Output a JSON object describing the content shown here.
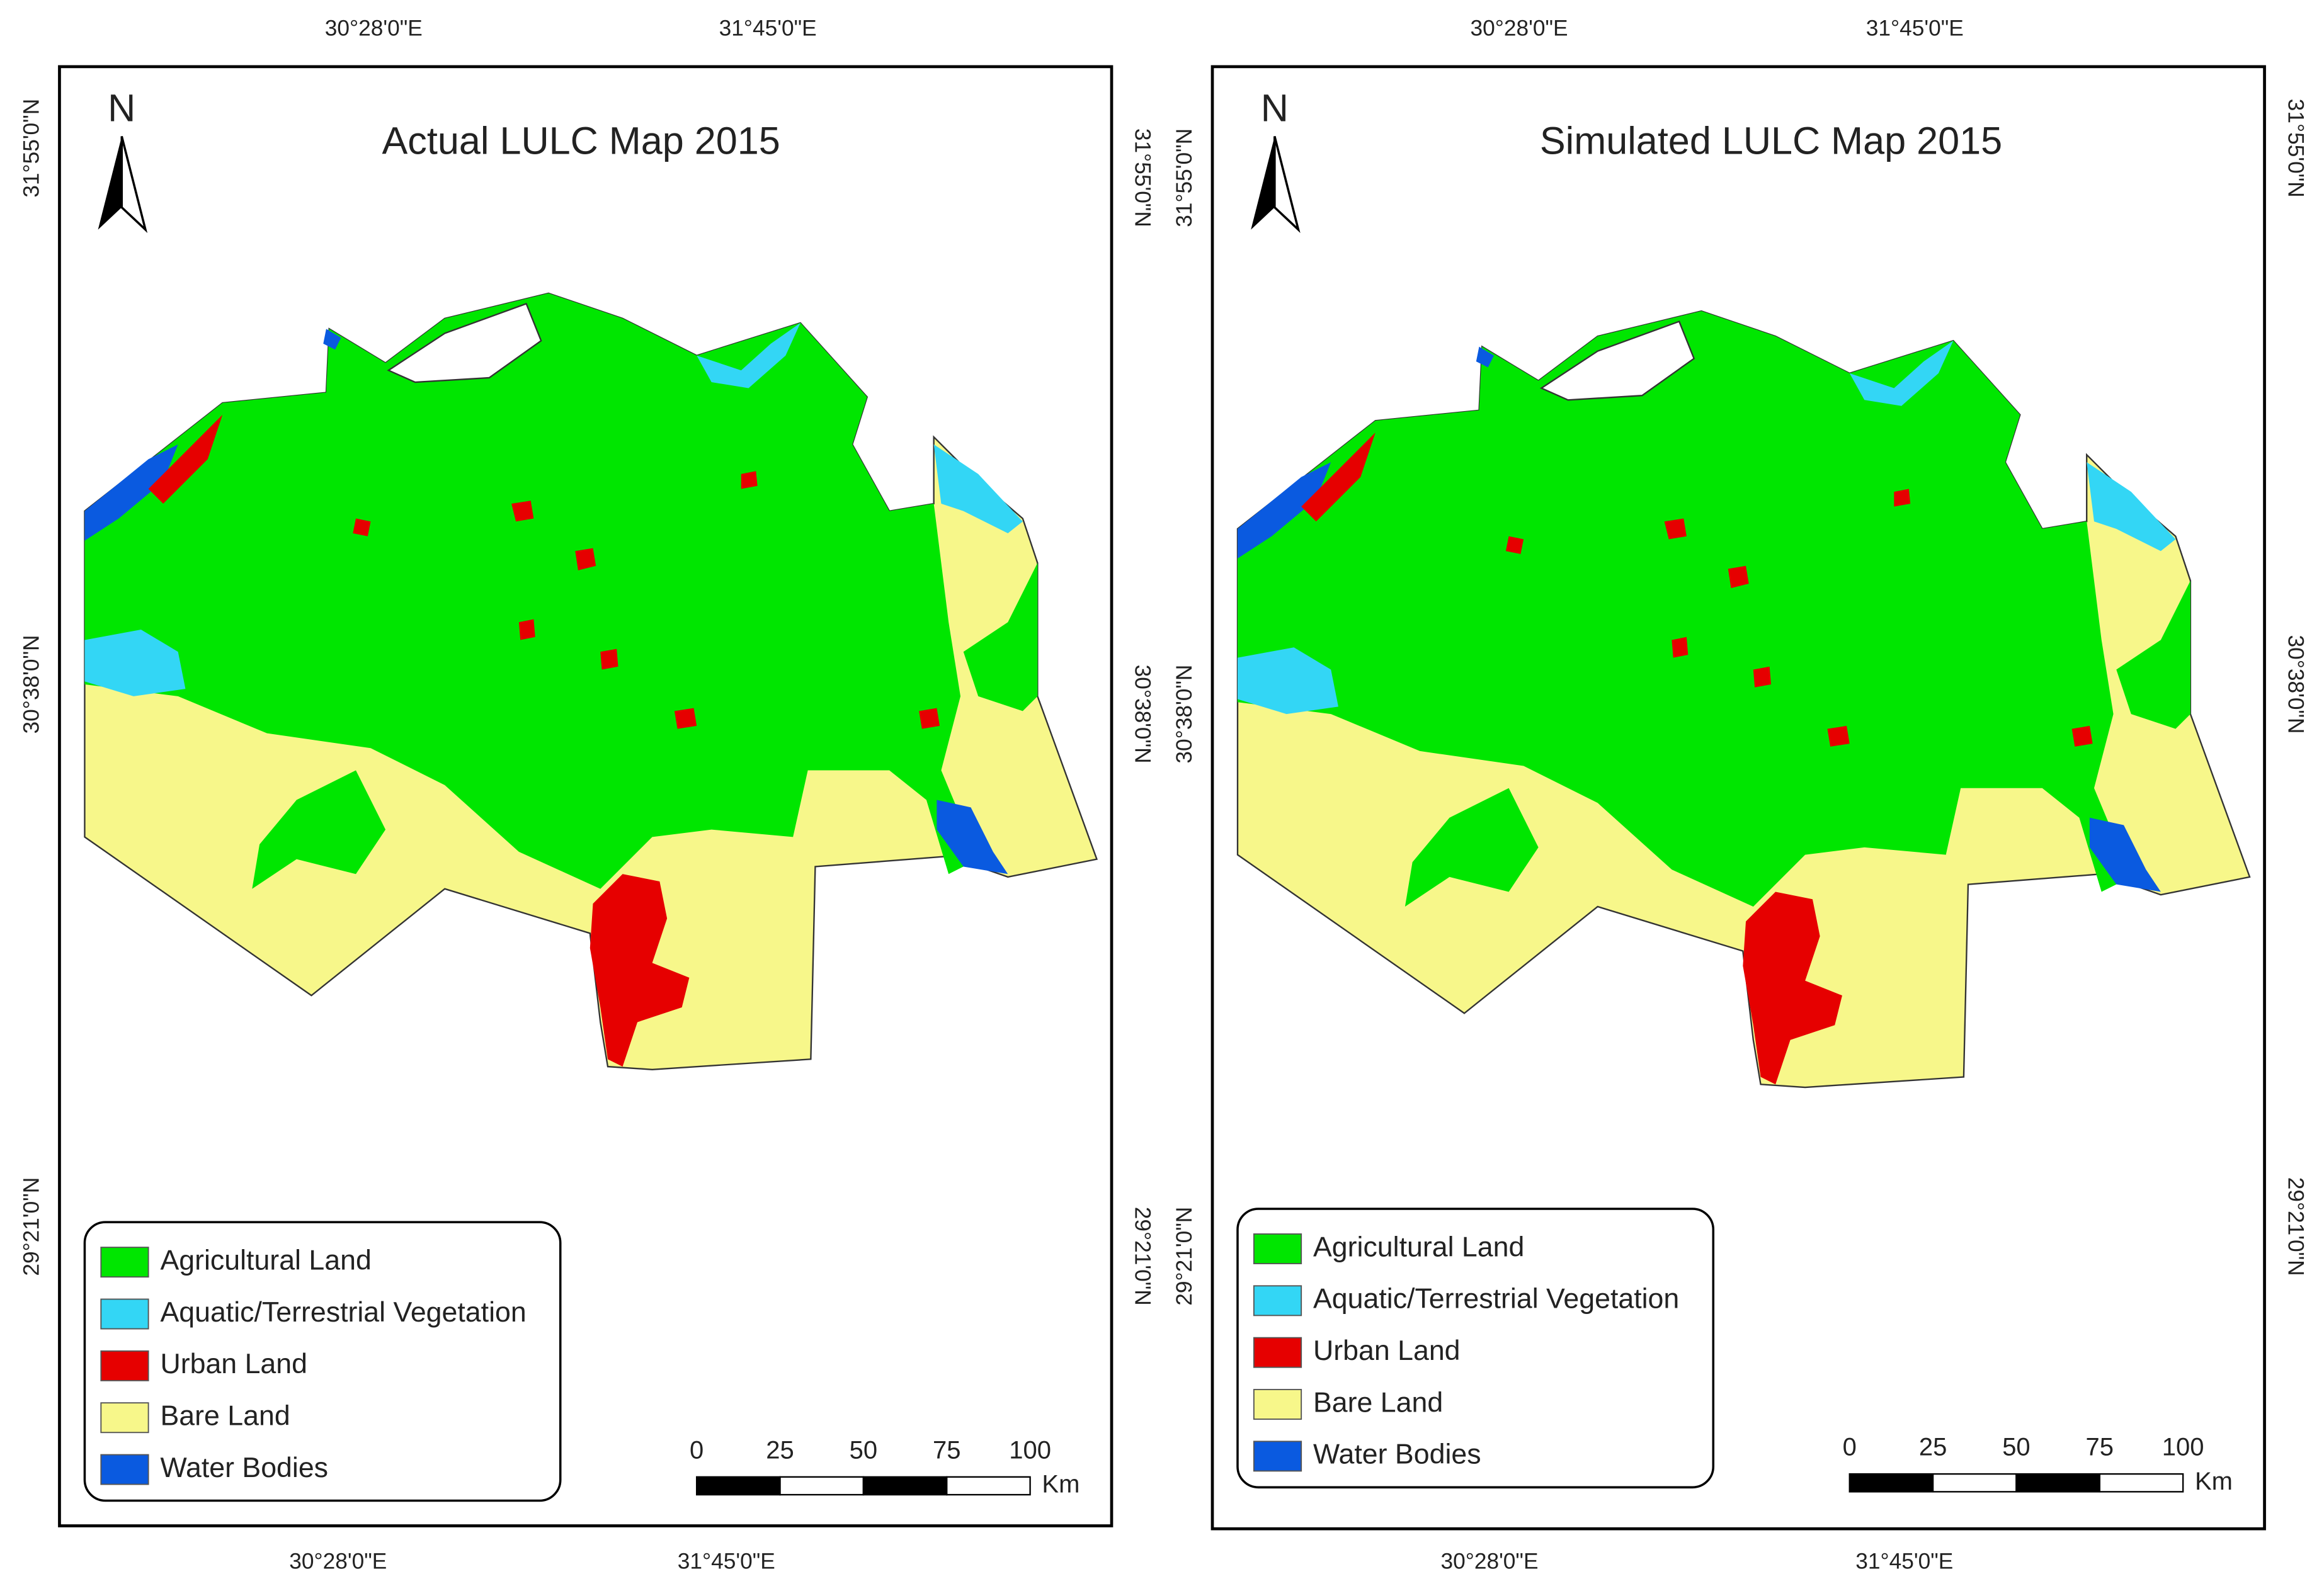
{
  "panels": [
    {
      "title": "Actual LULC Map 2015",
      "north": "N",
      "top_labels": [
        "30°28'0\"E",
        "31°45'0\"E"
      ],
      "bottom_labels": [
        "30°28'0\"E",
        "31°45'0\"E"
      ],
      "left_labels": [
        "31°55'0\"N",
        "30°38'0\"N",
        "29°21'0\"N"
      ],
      "right_labels": [
        "31°55'0\"N",
        "30°38'0\"N",
        "29°21'0\"N"
      ],
      "legend": [
        {
          "label": "Agricultural Land",
          "color": "#00e600"
        },
        {
          "label": "Aquatic/Terrestrial Vegetation",
          "color": "#33d6f5"
        },
        {
          "label": "Urban Land",
          "color": "#e60000"
        },
        {
          "label": "Bare Land",
          "color": "#f7f78a"
        },
        {
          "label": "Water Bodies",
          "color": "#0a5ae0"
        }
      ],
      "scale": {
        "ticks": [
          0,
          25,
          50,
          75,
          100
        ],
        "unit": "Km"
      }
    },
    {
      "title": "Simulated LULC Map 2015",
      "north": "N",
      "top_labels": [
        "30°28'0\"E",
        "31°45'0\"E"
      ],
      "bottom_labels": [
        "30°28'0\"E",
        "31°45'0\"E"
      ],
      "left_labels": [
        "31°55'0\"N",
        "30°38'0\"N",
        "29°21'0\"N"
      ],
      "right_labels": [
        "31°55'0\"N",
        "30°38'0\"N",
        "29°21'0\"N"
      ],
      "legend": [
        {
          "label": "Agricultural Land",
          "color": "#00e600"
        },
        {
          "label": "Aquatic/Terrestrial Vegetation",
          "color": "#33d6f5"
        },
        {
          "label": "Urban Land",
          "color": "#e60000"
        },
        {
          "label": "Bare Land",
          "color": "#f7f78a"
        },
        {
          "label": "Water Bodies",
          "color": "#0a5ae0"
        }
      ],
      "scale": {
        "ticks": [
          0,
          25,
          50,
          75,
          100
        ],
        "unit": "Km"
      }
    }
  ]
}
